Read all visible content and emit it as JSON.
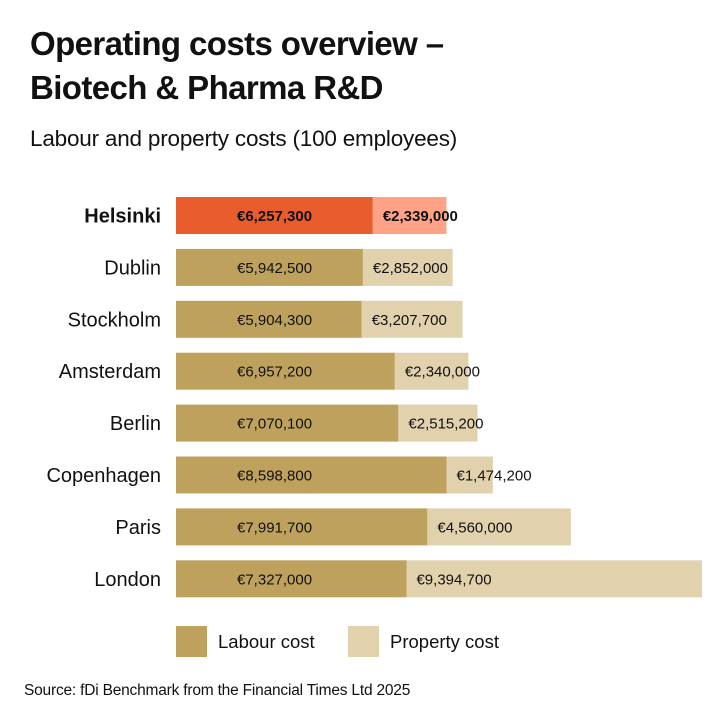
{
  "header": {
    "title_line1": "Operating costs overview –",
    "title_line2": "Biotech & Pharma R&D",
    "subtitle": "Labour and property costs (100 employees)"
  },
  "colors": {
    "labour": "#BFA15E",
    "property": "#E2D1AD",
    "highlight_labour": "#E95C2D",
    "highlight_property": "#FFA286",
    "text": "#111111"
  },
  "chart_data": {
    "type": "bar",
    "orientation": "horizontal",
    "stacked": true,
    "title": "Operating costs overview – Biotech & Pharma R&D",
    "subtitle": "Labour and property costs (100 employees)",
    "xlabel": "",
    "ylabel": "",
    "xlim": [
      0,
      16721700
    ],
    "grid": false,
    "legend_position": "bottom",
    "highlight": "Helsinki",
    "categories": [
      "Helsinki",
      "Dublin",
      "Stockholm",
      "Amsterdam",
      "Berlin",
      "Copenhagen",
      "Paris",
      "London"
    ],
    "series": [
      {
        "name": "Labour cost",
        "values": [
          6257300,
          5942500,
          5904300,
          6957200,
          7070100,
          8598800,
          7991700,
          7327000
        ],
        "labels": [
          "€6,257,300",
          "€5,942,500",
          "€5,904,300",
          "€6,957,200",
          "€7,070,100",
          "€8,598,800",
          "€7,991,700",
          "€7,327,000"
        ]
      },
      {
        "name": "Property cost",
        "values": [
          2339000,
          2852000,
          3207700,
          2340000,
          2515200,
          1474200,
          4560000,
          9394700
        ],
        "labels": [
          "€2,339,000",
          "€2,852,000",
          "€3,207,700",
          "€2,340,000",
          "€2,515,200",
          "€1,474,200",
          "€4,560,000",
          "€9,394,700"
        ]
      }
    ]
  },
  "legend": {
    "labour": "Labour cost",
    "property": "Property cost"
  },
  "source": "Source: fDi Benchmark from the Financial Times Ltd 2025"
}
